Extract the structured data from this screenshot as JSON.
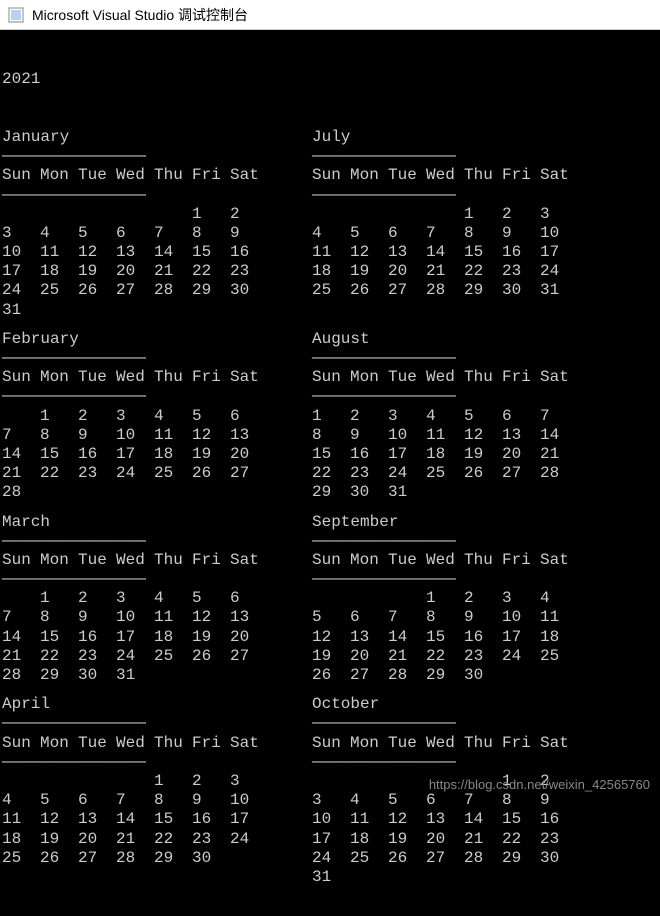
{
  "window": {
    "title": "Microsoft Visual Studio 调试控制台",
    "icon_bg": "#f0f0f0",
    "icon_border": "#888"
  },
  "colors": {
    "console_bg": "#000000",
    "console_fg": "#cccccc",
    "titlebar_bg": "#ffffff",
    "titlebar_fg": "#000000",
    "watermark_fg": "#888888"
  },
  "year": "2021",
  "weekday_labels": [
    "Sun",
    "Mon",
    "Tue",
    "Wed",
    "Thu",
    "Fri",
    "Sat"
  ],
  "divider_char": "———————————————",
  "watermark": "https://blog.csdn.net/weixin_42565760",
  "month_pairs": [
    {
      "left": {
        "name": "January",
        "weeks": [
          [
            "",
            "",
            "",
            "",
            "",
            "1",
            "2"
          ],
          [
            "3",
            "4",
            "5",
            "6",
            "7",
            "8",
            "9"
          ],
          [
            "10",
            "11",
            "12",
            "13",
            "14",
            "15",
            "16"
          ],
          [
            "17",
            "18",
            "19",
            "20",
            "21",
            "22",
            "23"
          ],
          [
            "24",
            "25",
            "26",
            "27",
            "28",
            "29",
            "30"
          ],
          [
            "31",
            "",
            "",
            "",
            "",
            "",
            ""
          ]
        ]
      },
      "right": {
        "name": "July",
        "weeks": [
          [
            "",
            "",
            "",
            "",
            "1",
            "2",
            "3"
          ],
          [
            "4",
            "5",
            "6",
            "7",
            "8",
            "9",
            "10"
          ],
          [
            "11",
            "12",
            "13",
            "14",
            "15",
            "16",
            "17"
          ],
          [
            "18",
            "19",
            "20",
            "21",
            "22",
            "23",
            "24"
          ],
          [
            "25",
            "26",
            "27",
            "28",
            "29",
            "30",
            "31"
          ]
        ]
      }
    },
    {
      "left": {
        "name": "February",
        "weeks": [
          [
            "",
            "1",
            "2",
            "3",
            "4",
            "5",
            "6"
          ],
          [
            "7",
            "8",
            "9",
            "10",
            "11",
            "12",
            "13"
          ],
          [
            "14",
            "15",
            "16",
            "17",
            "18",
            "19",
            "20"
          ],
          [
            "21",
            "22",
            "23",
            "24",
            "25",
            "26",
            "27"
          ],
          [
            "28",
            "",
            "",
            "",
            "",
            "",
            ""
          ]
        ]
      },
      "right": {
        "name": "August",
        "weeks": [
          [
            "1",
            "2",
            "3",
            "4",
            "5",
            "6",
            "7"
          ],
          [
            "8",
            "9",
            "10",
            "11",
            "12",
            "13",
            "14"
          ],
          [
            "15",
            "16",
            "17",
            "18",
            "19",
            "20",
            "21"
          ],
          [
            "22",
            "23",
            "24",
            "25",
            "26",
            "27",
            "28"
          ],
          [
            "29",
            "30",
            "31",
            "",
            "",
            "",
            ""
          ]
        ]
      }
    },
    {
      "left": {
        "name": "March",
        "weeks": [
          [
            "",
            "1",
            "2",
            "3",
            "4",
            "5",
            "6"
          ],
          [
            "7",
            "8",
            "9",
            "10",
            "11",
            "12",
            "13"
          ],
          [
            "14",
            "15",
            "16",
            "17",
            "18",
            "19",
            "20"
          ],
          [
            "21",
            "22",
            "23",
            "24",
            "25",
            "26",
            "27"
          ],
          [
            "28",
            "29",
            "30",
            "31",
            "",
            "",
            ""
          ]
        ]
      },
      "right": {
        "name": "September",
        "weeks": [
          [
            "",
            "",
            "",
            "1",
            "2",
            "3",
            "4"
          ],
          [
            "5",
            "6",
            "7",
            "8",
            "9",
            "10",
            "11"
          ],
          [
            "12",
            "13",
            "14",
            "15",
            "16",
            "17",
            "18"
          ],
          [
            "19",
            "20",
            "21",
            "22",
            "23",
            "24",
            "25"
          ],
          [
            "26",
            "27",
            "28",
            "29",
            "30",
            "",
            ""
          ]
        ]
      }
    },
    {
      "left": {
        "name": "April",
        "weeks": [
          [
            "",
            "",
            "",
            "",
            "1",
            "2",
            "3"
          ],
          [
            "4",
            "5",
            "6",
            "7",
            "8",
            "9",
            "10"
          ],
          [
            "11",
            "12",
            "13",
            "14",
            "15",
            "16",
            "17"
          ],
          [
            "18",
            "19",
            "20",
            "21",
            "22",
            "23",
            "24"
          ],
          [
            "25",
            "26",
            "27",
            "28",
            "29",
            "30",
            ""
          ]
        ]
      },
      "right": {
        "name": "October",
        "weeks": [
          [
            "",
            "",
            "",
            "",
            "",
            "1",
            "2"
          ],
          [
            "3",
            "4",
            "5",
            "6",
            "7",
            "8",
            "9"
          ],
          [
            "10",
            "11",
            "12",
            "13",
            "14",
            "15",
            "16"
          ],
          [
            "17",
            "18",
            "19",
            "20",
            "21",
            "22",
            "23"
          ],
          [
            "24",
            "25",
            "26",
            "27",
            "28",
            "29",
            "30"
          ],
          [
            "31",
            "",
            "",
            "",
            "",
            "",
            ""
          ]
        ]
      }
    }
  ]
}
